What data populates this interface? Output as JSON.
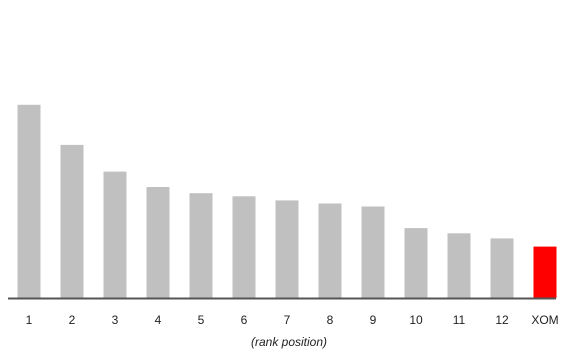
{
  "chart_data": {
    "type": "bar",
    "title": "",
    "xlabel": "(rank position)",
    "ylabel": "",
    "categories": [
      "1",
      "2",
      "3",
      "4",
      "5",
      "6",
      "7",
      "8",
      "9",
      "10",
      "11",
      "12",
      "XOM"
    ],
    "values": [
      188,
      149,
      123,
      108,
      102,
      99,
      95,
      92,
      89,
      68,
      63,
      58,
      50
    ],
    "ylim": [
      0,
      290
    ],
    "highlight_category": "XOM",
    "bar_color": "#c0c0c0",
    "highlight_color": "#ff0000",
    "axis_color": "#555555",
    "grid": false,
    "legend": "none"
  }
}
